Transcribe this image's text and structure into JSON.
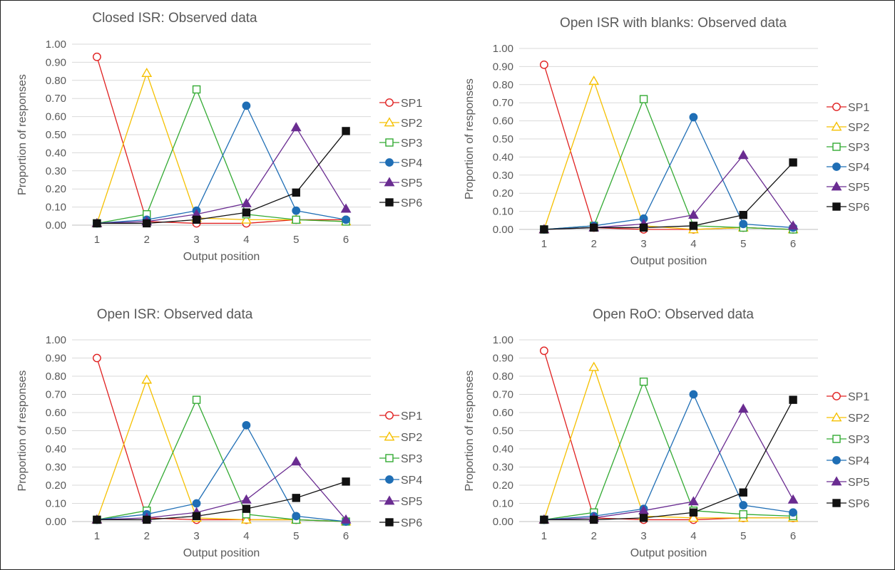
{
  "chart_data": [
    {
      "type": "line",
      "title": "Closed ISR: Observed data",
      "xlabel": "Output position",
      "ylabel": "Proportion of responses",
      "categories": [
        "1",
        "2",
        "3",
        "4",
        "5",
        "6"
      ],
      "ylim": [
        0,
        1
      ],
      "y_ticks": [
        "0.00",
        "0.10",
        "0.20",
        "0.30",
        "0.40",
        "0.50",
        "0.60",
        "0.70",
        "0.80",
        "0.90",
        "1.00"
      ],
      "grid": true,
      "legend_position": "right",
      "series": [
        {
          "name": "SP1",
          "values": [
            0.93,
            0.02,
            0.01,
            0.01,
            0.03,
            0.03
          ]
        },
        {
          "name": "SP2",
          "values": [
            0.01,
            0.84,
            0.04,
            0.03,
            0.03,
            0.02
          ]
        },
        {
          "name": "SP3",
          "values": [
            0.01,
            0.06,
            0.75,
            0.06,
            0.03,
            0.02
          ]
        },
        {
          "name": "SP4",
          "values": [
            0.01,
            0.03,
            0.08,
            0.66,
            0.08,
            0.03
          ]
        },
        {
          "name": "SP5",
          "values": [
            0.01,
            0.02,
            0.06,
            0.12,
            0.54,
            0.09
          ]
        },
        {
          "name": "SP6",
          "values": [
            0.01,
            0.01,
            0.03,
            0.07,
            0.18,
            0.52
          ]
        }
      ]
    },
    {
      "type": "line",
      "title": "Open ISR with blanks: Observed data",
      "xlabel": "Output position",
      "ylabel": "Proportion of responses",
      "categories": [
        "1",
        "2",
        "3",
        "4",
        "5",
        "6"
      ],
      "ylim": [
        0,
        1
      ],
      "y_ticks": [
        "0.00",
        "0.10",
        "0.20",
        "0.30",
        "0.40",
        "0.50",
        "0.60",
        "0.70",
        "0.80",
        "0.90",
        "1.00"
      ],
      "grid": true,
      "legend_position": "right",
      "series": [
        {
          "name": "SP1",
          "values": [
            0.91,
            0.01,
            0.0,
            0.0,
            0.01,
            0.0
          ]
        },
        {
          "name": "SP2",
          "values": [
            0.0,
            0.82,
            0.02,
            0.0,
            0.01,
            0.0
          ]
        },
        {
          "name": "SP3",
          "values": [
            0.0,
            0.02,
            0.72,
            0.02,
            0.01,
            0.0
          ]
        },
        {
          "name": "SP4",
          "values": [
            0.0,
            0.02,
            0.06,
            0.62,
            0.03,
            0.01
          ]
        },
        {
          "name": "SP5",
          "values": [
            0.0,
            0.01,
            0.03,
            0.08,
            0.41,
            0.02
          ]
        },
        {
          "name": "SP6",
          "values": [
            0.0,
            0.01,
            0.01,
            0.02,
            0.08,
            0.37
          ]
        }
      ]
    },
    {
      "type": "line",
      "title": "Open ISR: Observed data",
      "xlabel": "Output position",
      "ylabel": "Proportion of responses",
      "categories": [
        "1",
        "2",
        "3",
        "4",
        "5",
        "6"
      ],
      "ylim": [
        0,
        1
      ],
      "y_ticks": [
        "0.00",
        "0.10",
        "0.20",
        "0.30",
        "0.40",
        "0.50",
        "0.60",
        "0.70",
        "0.80",
        "0.90",
        "1.00"
      ],
      "grid": true,
      "legend_position": "right",
      "series": [
        {
          "name": "SP1",
          "values": [
            0.9,
            0.02,
            0.01,
            0.01,
            0.01,
            0.0
          ]
        },
        {
          "name": "SP2",
          "values": [
            0.01,
            0.78,
            0.02,
            0.01,
            0.01,
            0.0
          ]
        },
        {
          "name": "SP3",
          "values": [
            0.01,
            0.06,
            0.67,
            0.04,
            0.01,
            0.0
          ]
        },
        {
          "name": "SP4",
          "values": [
            0.01,
            0.04,
            0.1,
            0.53,
            0.03,
            0.0
          ]
        },
        {
          "name": "SP5",
          "values": [
            0.01,
            0.02,
            0.05,
            0.12,
            0.33,
            0.01
          ]
        },
        {
          "name": "SP6",
          "values": [
            0.01,
            0.01,
            0.03,
            0.07,
            0.13,
            0.22
          ]
        }
      ]
    },
    {
      "type": "line",
      "title": "Open RoO: Observed data",
      "xlabel": "Output position",
      "ylabel": "Proportion of responses",
      "categories": [
        "1",
        "2",
        "3",
        "4",
        "5",
        "6"
      ],
      "ylim": [
        0,
        1
      ],
      "y_ticks": [
        "0.00",
        "0.10",
        "0.20",
        "0.30",
        "0.40",
        "0.50",
        "0.60",
        "0.70",
        "0.80",
        "0.90",
        "1.00"
      ],
      "grid": true,
      "legend_position": "right",
      "series": [
        {
          "name": "SP1",
          "values": [
            0.94,
            0.02,
            0.01,
            0.01,
            0.02,
            0.02
          ]
        },
        {
          "name": "SP2",
          "values": [
            0.01,
            0.85,
            0.03,
            0.02,
            0.02,
            0.02
          ]
        },
        {
          "name": "SP3",
          "values": [
            0.01,
            0.05,
            0.77,
            0.06,
            0.04,
            0.03
          ]
        },
        {
          "name": "SP4",
          "values": [
            0.01,
            0.03,
            0.07,
            0.7,
            0.09,
            0.05
          ]
        },
        {
          "name": "SP5",
          "values": [
            0.01,
            0.02,
            0.06,
            0.11,
            0.62,
            0.12
          ]
        },
        {
          "name": "SP6",
          "values": [
            0.01,
            0.01,
            0.02,
            0.05,
            0.16,
            0.67
          ]
        }
      ]
    }
  ],
  "series_styles": [
    {
      "color": "#e02020",
      "marker": "circle",
      "filled": false,
      "marker_name": "open-circle-marker"
    },
    {
      "color": "#f5c000",
      "marker": "triangle",
      "filled": false,
      "marker_name": "open-triangle-marker"
    },
    {
      "color": "#33aa33",
      "marker": "square",
      "filled": false,
      "marker_name": "open-square-marker"
    },
    {
      "color": "#1f6eb5",
      "marker": "circle",
      "filled": true,
      "marker_name": "filled-circle-marker"
    },
    {
      "color": "#6a2c91",
      "marker": "triangle",
      "filled": true,
      "marker_name": "filled-triangle-marker"
    },
    {
      "color": "#111111",
      "marker": "square",
      "filled": true,
      "marker_name": "filled-square-marker"
    }
  ]
}
